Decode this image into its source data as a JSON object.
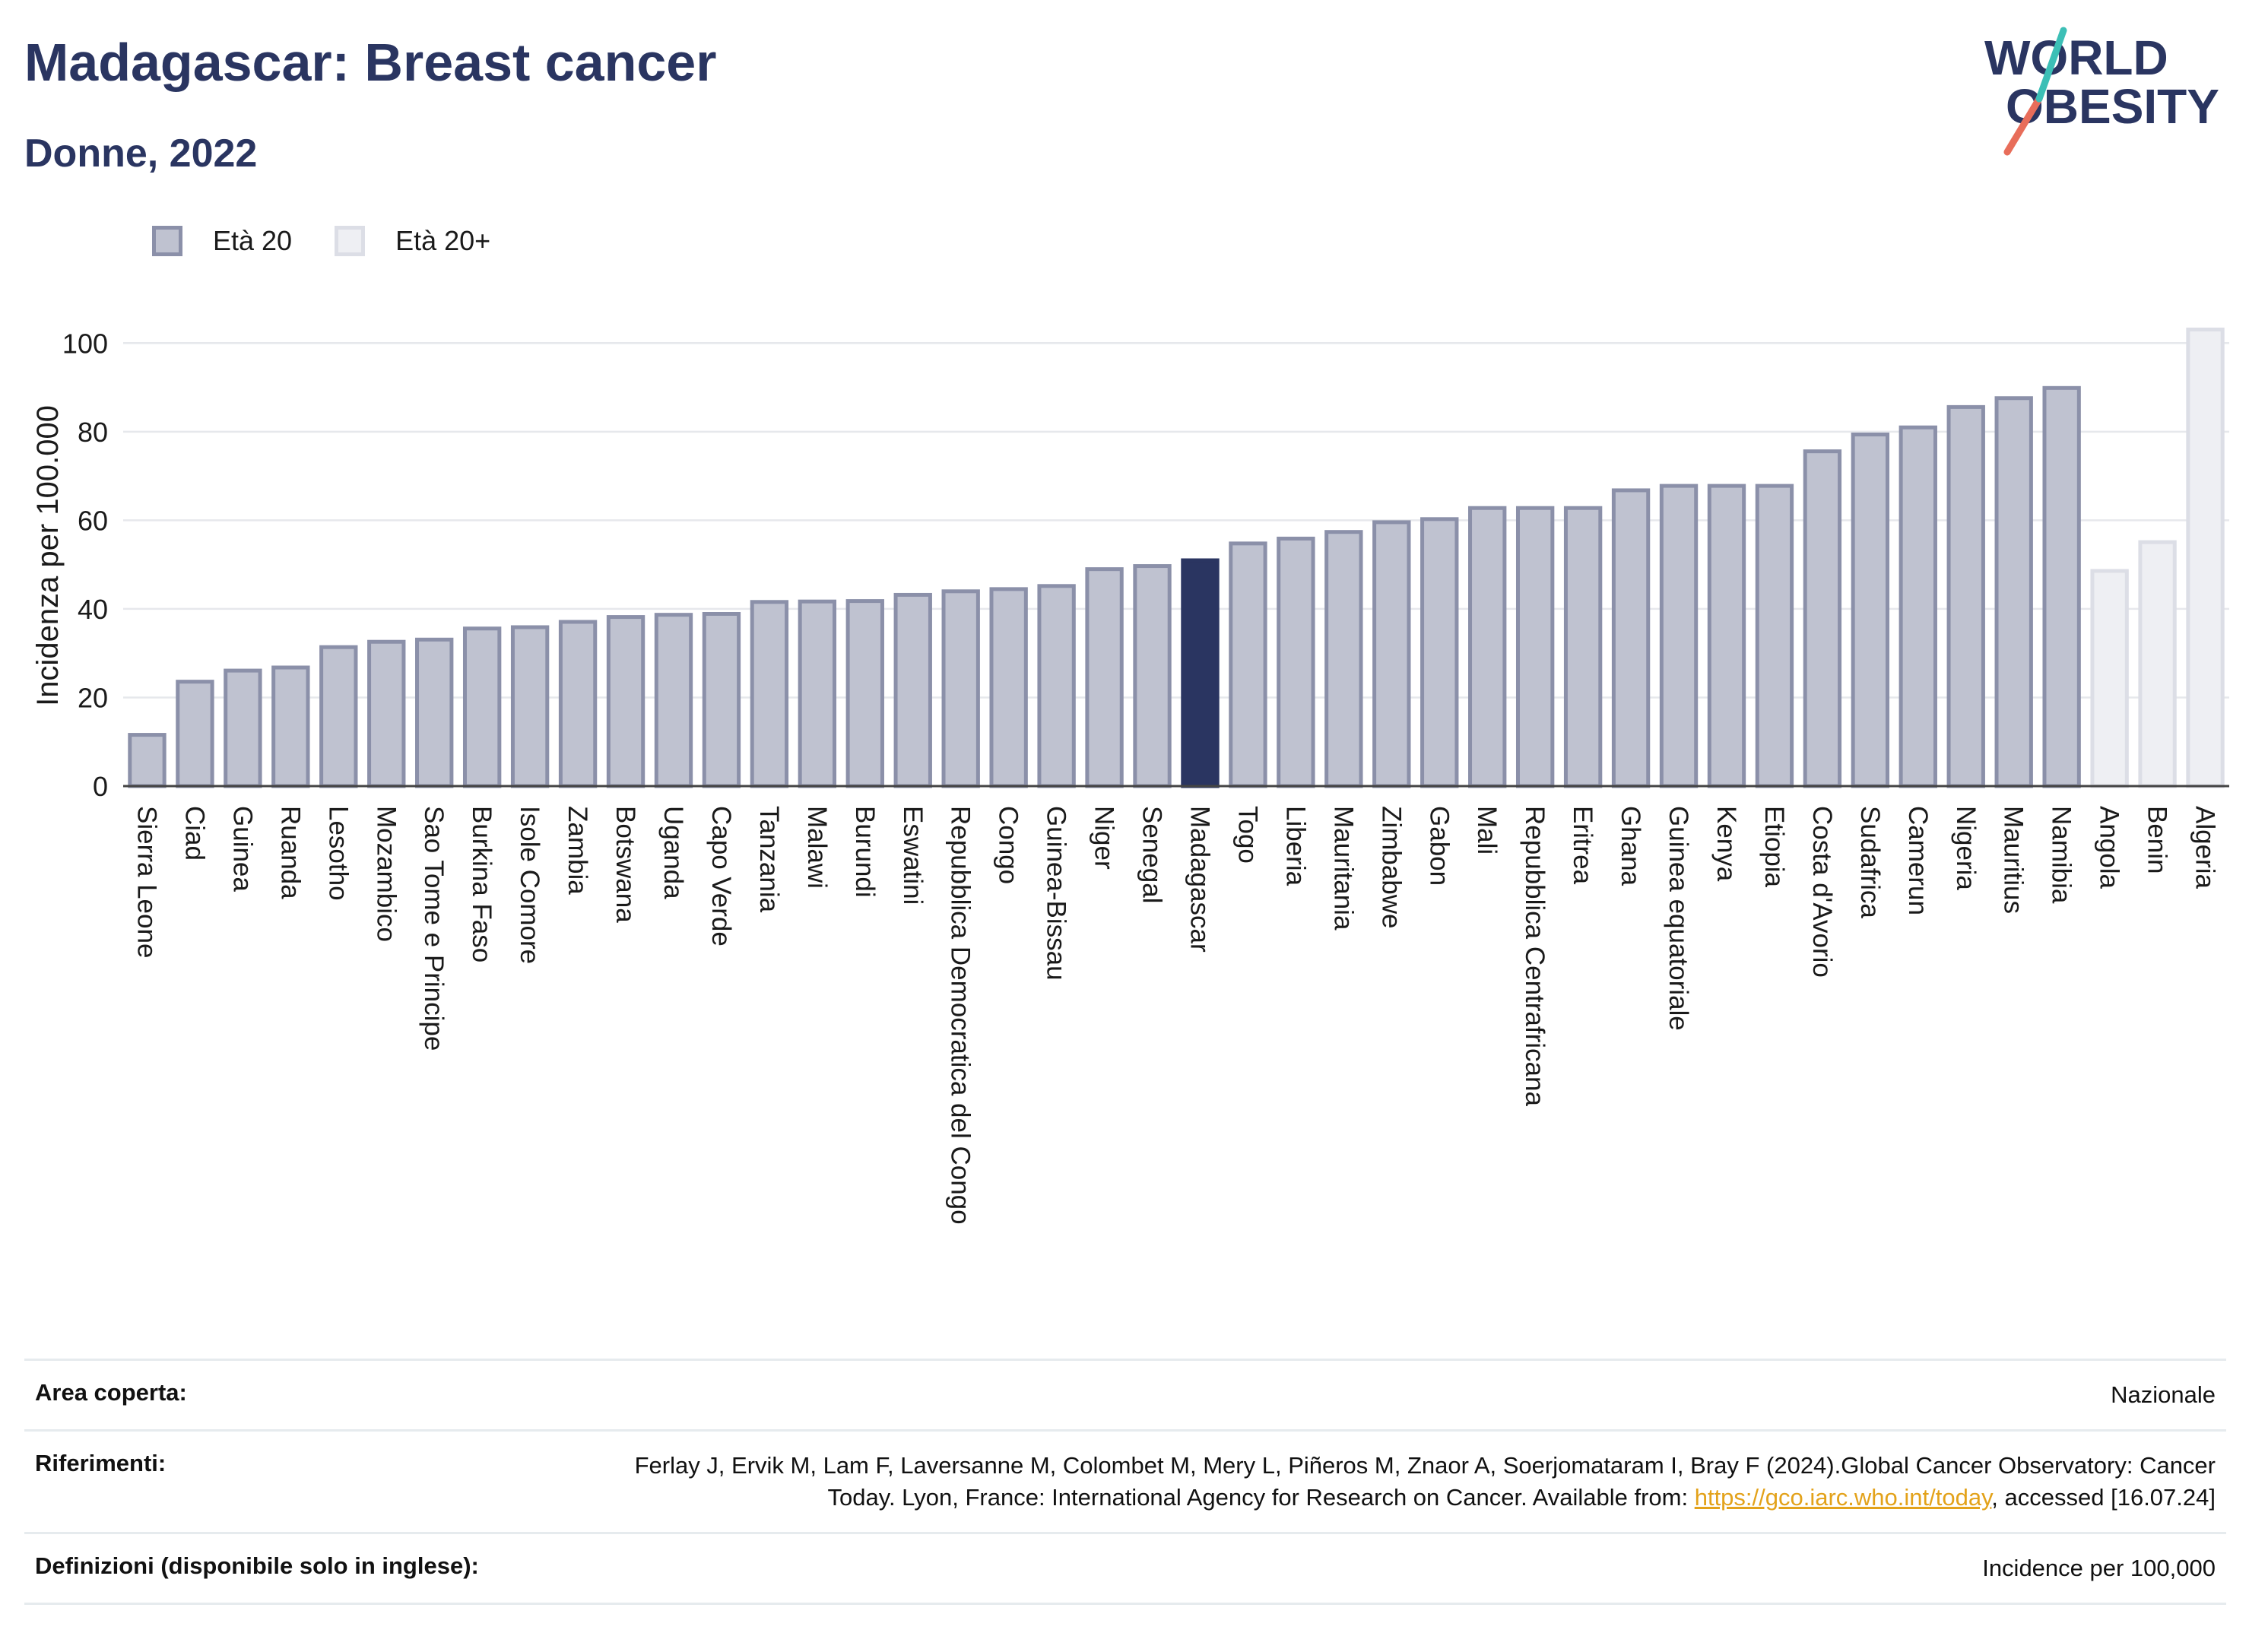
{
  "header": {
    "title": "Madagascar: Breast cancer",
    "subtitle": "Donne, 2022"
  },
  "logo": {
    "line1": "WORLD",
    "line2": "OBESITY"
  },
  "legend": [
    {
      "label": "Età 20",
      "color": "#bfc2d0"
    },
    {
      "label": "Età 20+",
      "color": "#eeeff3"
    }
  ],
  "chart_data": {
    "type": "bar",
    "ylabel": "Incidenza per 100.000",
    "xlabel": "",
    "ylim": [
      0,
      104
    ],
    "yticks": [
      0,
      20,
      40,
      60,
      80,
      100
    ],
    "grid": true,
    "legend_position": "top-left",
    "highlight": "Madagascar",
    "colors": {
      "age20_fill": "#bfc2d0",
      "age20_stroke": "#8b90a9",
      "age20plus_fill": "#eeeff3",
      "age20plus_stroke": "#dcdee6",
      "highlight_fill": "#2a3561"
    },
    "categories": [
      "Sierra Leone",
      "Ciad",
      "Guinea",
      "Ruanda",
      "Lesotho",
      "Mozambico",
      "Sao Tome e Principe",
      "Burkina Faso",
      "Isole Comore",
      "Zambia",
      "Botswana",
      "Uganda",
      "Capo Verde",
      "Tanzania",
      "Malawi",
      "Burundi",
      "Eswatini",
      "Repubblica Democratica del Congo",
      "Congo",
      "Guinea-Bissau",
      "Niger",
      "Senegal",
      "Madagascar",
      "Togo",
      "Liberia",
      "Mauritania",
      "Zimbabwe",
      "Gabon",
      "Mali",
      "Repubblica Centrafricana",
      "Eritrea",
      "Ghana",
      "Guinea equatoriale",
      "Kenya",
      "Etiopia",
      "Costa d'Avorio",
      "Sudafrica",
      "Camerun",
      "Nigeria",
      "Mauritius",
      "Namibia",
      "Angola",
      "Benin",
      "Algeria"
    ],
    "values": [
      12,
      24,
      26.5,
      27.2,
      31.8,
      33,
      33.5,
      36,
      36.3,
      37.5,
      38.6,
      39.1,
      39.3,
      42,
      42.1,
      42.2,
      43.6,
      44.4,
      44.9,
      45.6,
      49.4,
      50.1,
      51.4,
      55.2,
      56.3,
      57.8,
      60,
      60.7,
      63.2,
      63.2,
      63.2,
      67.2,
      68.2,
      68.2,
      68.2,
      76,
      79.8,
      81.4,
      86,
      88,
      90.3,
      49,
      55.5,
      103.5
    ],
    "series_group": [
      "Età 20",
      "Età 20",
      "Età 20",
      "Età 20",
      "Età 20",
      "Età 20",
      "Età 20",
      "Età 20",
      "Età 20",
      "Età 20",
      "Età 20",
      "Età 20",
      "Età 20",
      "Età 20",
      "Età 20",
      "Età 20",
      "Età 20",
      "Età 20",
      "Età 20",
      "Età 20",
      "Età 20",
      "Età 20",
      "Età 20",
      "Età 20",
      "Età 20",
      "Età 20",
      "Età 20",
      "Età 20",
      "Età 20",
      "Età 20",
      "Età 20",
      "Età 20",
      "Età 20",
      "Età 20",
      "Età 20",
      "Età 20",
      "Età 20",
      "Età 20",
      "Età 20",
      "Età 20",
      "Età 20",
      "Età 20+",
      "Età 20+",
      "Età 20+"
    ]
  },
  "meta": {
    "area_label": "Area coperta:",
    "area_value": "Nazionale",
    "ref_label": "Riferimenti:",
    "ref_text": "Ferlay J, Ervik M, Lam F, Laversanne M, Colombet M, Mery L, Piñeros M, Znaor A, Soerjomataram I, Bray F (2024).Global Cancer Observatory: Cancer Today. Lyon, France: International Agency for Research on Cancer. Available from:",
    "ref_link": "https://gco.iarc.who.int/today",
    "ref_suffix": ", accessed [16.07.24]",
    "def_label": "Definizioni (disponibile solo in inglese):",
    "def_value": "Incidence per 100,000"
  }
}
